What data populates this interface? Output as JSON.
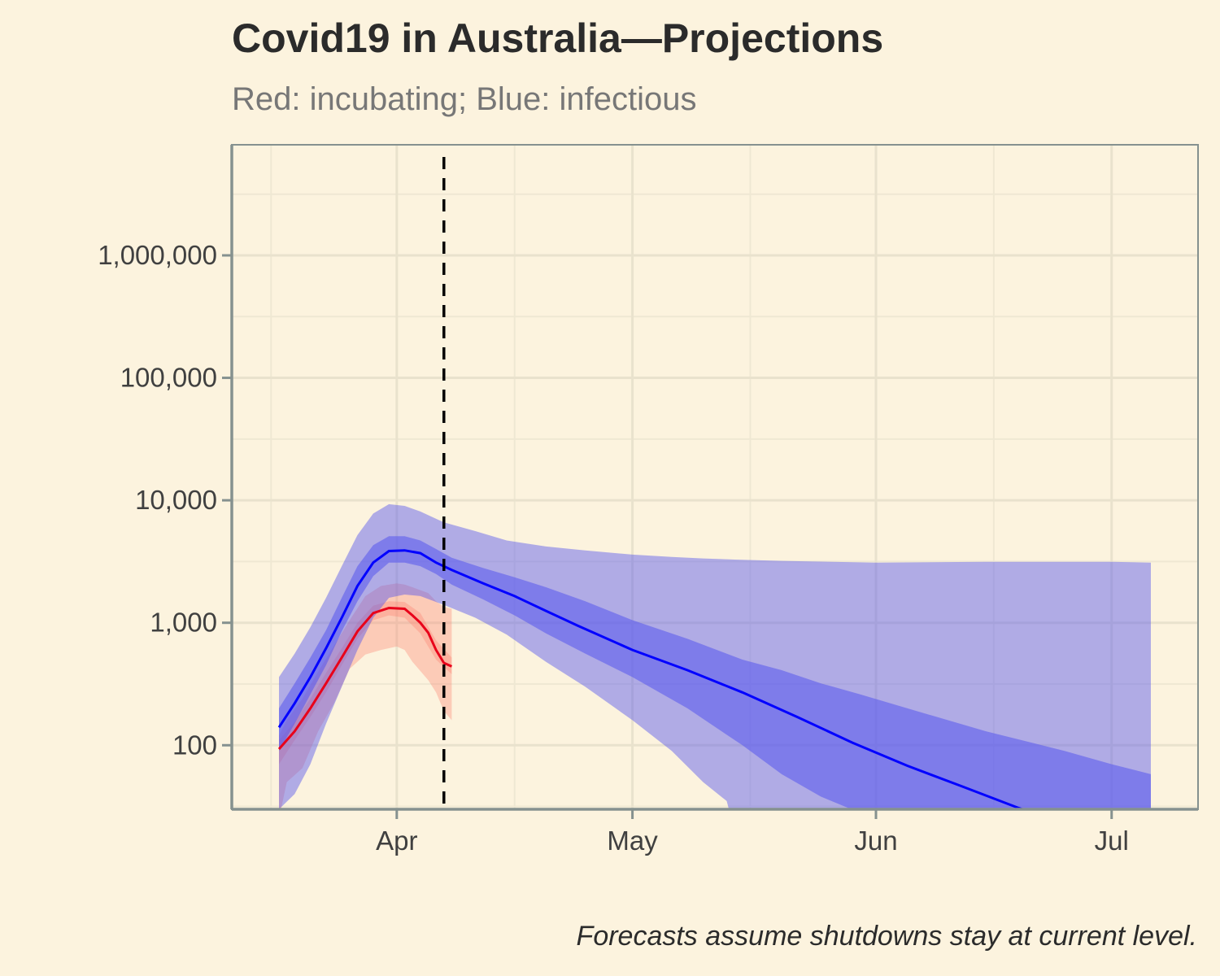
{
  "chart_data": {
    "type": "area",
    "title": "Covid19 in Australia—Projections",
    "subtitle": "Red: incubating; Blue: infectious",
    "caption": "Forecasts assume shutdowns stay at current level.",
    "xlabel": "",
    "ylabel": "",
    "y_scale": "log10",
    "ylim": [
      30,
      8000000
    ],
    "xlim": [
      "2020-03-11",
      "2020-07-12"
    ],
    "grid": true,
    "legend": "none",
    "y_ticks": [
      {
        "value": 100,
        "label": "100"
      },
      {
        "value": 1000,
        "label": "1,000"
      },
      {
        "value": 10000,
        "label": "10,000"
      },
      {
        "value": 100000,
        "label": "100,000"
      },
      {
        "value": 1000000,
        "label": "1,000,000"
      }
    ],
    "x_ticks": [
      {
        "date": "2020-04-01",
        "label": "Apr"
      },
      {
        "date": "2020-05-01",
        "label": "May"
      },
      {
        "date": "2020-06-01",
        "label": "Jun"
      },
      {
        "date": "2020-07-01",
        "label": "Jul"
      }
    ],
    "vline": {
      "date": "2020-04-07",
      "style": "dashed",
      "color": "#000000"
    },
    "colors": {
      "background": "#fcf3de",
      "grid_major": "#e9e2cd",
      "grid_minor": "#efe8d3",
      "axis": "#85918f",
      "incubating": "#e8001a",
      "incubating_band": "#fc8070",
      "infectious": "#0000ff",
      "infectious_band": "#5555ee"
    },
    "series": [
      {
        "name": "incubating",
        "color": "#e8001a",
        "line": [
          [
            "2020-03-17",
            93
          ],
          [
            "2020-03-19",
            130
          ],
          [
            "2020-03-21",
            200
          ],
          [
            "2020-03-23",
            320
          ],
          [
            "2020-03-25",
            520
          ],
          [
            "2020-03-27",
            850
          ],
          [
            "2020-03-29",
            1200
          ],
          [
            "2020-03-31",
            1320
          ],
          [
            "2020-04-02",
            1300
          ],
          [
            "2020-04-03",
            1150
          ],
          [
            "2020-04-04",
            1000
          ],
          [
            "2020-04-05",
            830
          ],
          [
            "2020-04-06",
            600
          ],
          [
            "2020-04-07",
            470
          ],
          [
            "2020-04-08",
            440
          ]
        ],
        "band_outer": [
          [
            "2020-03-17",
            25,
            120
          ],
          [
            "2020-03-18",
            50,
            160
          ],
          [
            "2020-03-20",
            65,
            240
          ],
          [
            "2020-03-22",
            130,
            400
          ],
          [
            "2020-03-24",
            220,
            650
          ],
          [
            "2020-03-26",
            420,
            1050
          ],
          [
            "2020-03-28",
            550,
            1650
          ],
          [
            "2020-03-30",
            600,
            2000
          ],
          [
            "2020-04-01",
            640,
            2100
          ],
          [
            "2020-04-02",
            600,
            2050
          ],
          [
            "2020-04-03",
            480,
            1950
          ],
          [
            "2020-04-05",
            340,
            1750
          ],
          [
            "2020-04-06",
            270,
            1500
          ],
          [
            "2020-04-07",
            190,
            1350
          ],
          [
            "2020-04-08",
            160,
            1300
          ]
        ],
        "band_inner": [
          [
            "2020-03-17",
            70,
            110
          ],
          [
            "2020-03-19",
            110,
            155
          ],
          [
            "2020-03-21",
            170,
            240
          ],
          [
            "2020-03-23",
            270,
            390
          ],
          [
            "2020-03-25",
            450,
            620
          ],
          [
            "2020-03-27",
            740,
            1000
          ],
          [
            "2020-03-29",
            1050,
            1380
          ],
          [
            "2020-03-31",
            1150,
            1500
          ],
          [
            "2020-04-02",
            1100,
            1480
          ],
          [
            "2020-04-04",
            820,
            1200
          ],
          [
            "2020-04-06",
            500,
            720
          ],
          [
            "2020-04-08",
            380,
            520
          ]
        ]
      },
      {
        "name": "infectious",
        "color": "#0000ff",
        "line": [
          [
            "2020-03-17",
            140
          ],
          [
            "2020-03-19",
            220
          ],
          [
            "2020-03-21",
            360
          ],
          [
            "2020-03-23",
            620
          ],
          [
            "2020-03-25",
            1100
          ],
          [
            "2020-03-27",
            2000
          ],
          [
            "2020-03-29",
            3100
          ],
          [
            "2020-03-31",
            3850
          ],
          [
            "2020-04-02",
            3900
          ],
          [
            "2020-04-04",
            3700
          ],
          [
            "2020-04-06",
            3100
          ],
          [
            "2020-04-08",
            2700
          ],
          [
            "2020-04-12",
            2100
          ],
          [
            "2020-04-16",
            1650
          ],
          [
            "2020-04-20",
            1250
          ],
          [
            "2020-04-24",
            950
          ],
          [
            "2020-05-01",
            600
          ],
          [
            "2020-05-08",
            410
          ],
          [
            "2020-05-15",
            270
          ],
          [
            "2020-05-22",
            170
          ],
          [
            "2020-05-29",
            105
          ],
          [
            "2020-06-05",
            68
          ],
          [
            "2020-06-12",
            46
          ],
          [
            "2020-06-19",
            31
          ],
          [
            "2020-06-21",
            28
          ]
        ],
        "band_outer": [
          [
            "2020-03-17",
            30,
            360
          ],
          [
            "2020-03-19",
            40,
            560
          ],
          [
            "2020-03-21",
            70,
            920
          ],
          [
            "2020-03-23",
            150,
            1600
          ],
          [
            "2020-03-25",
            300,
            2900
          ],
          [
            "2020-03-27",
            600,
            5200
          ],
          [
            "2020-03-29",
            1100,
            7800
          ],
          [
            "2020-03-31",
            1600,
            9300
          ],
          [
            "2020-04-02",
            1700,
            9000
          ],
          [
            "2020-04-04",
            1650,
            8100
          ],
          [
            "2020-04-07",
            1400,
            6600
          ],
          [
            "2020-04-11",
            1100,
            5600
          ],
          [
            "2020-04-15",
            800,
            4700
          ],
          [
            "2020-04-20",
            480,
            4200
          ],
          [
            "2020-04-25",
            300,
            3900
          ],
          [
            "2020-05-01",
            160,
            3600
          ],
          [
            "2020-05-06",
            90,
            3450
          ],
          [
            "2020-05-10",
            50,
            3350
          ],
          [
            "2020-05-13",
            35,
            3300
          ],
          [
            "2020-05-14",
            20,
            3280
          ],
          [
            "2020-05-20",
            20,
            3200
          ],
          [
            "2020-06-01",
            20,
            3100
          ],
          [
            "2020-06-15",
            20,
            3150
          ],
          [
            "2020-07-01",
            20,
            3150
          ],
          [
            "2020-07-06",
            20,
            3100
          ]
        ],
        "band_inner": [
          [
            "2020-03-17",
            90,
            200
          ],
          [
            "2020-03-19",
            150,
            320
          ],
          [
            "2020-03-21",
            260,
            520
          ],
          [
            "2020-03-23",
            450,
            870
          ],
          [
            "2020-03-25",
            850,
            1600
          ],
          [
            "2020-03-27",
            1500,
            2900
          ],
          [
            "2020-03-29",
            2400,
            4300
          ],
          [
            "2020-03-31",
            3100,
            5100
          ],
          [
            "2020-04-02",
            3100,
            5100
          ],
          [
            "2020-04-04",
            2900,
            4700
          ],
          [
            "2020-04-06",
            2500,
            4000
          ],
          [
            "2020-04-08",
            2050,
            3400
          ],
          [
            "2020-04-12",
            1550,
            2800
          ],
          [
            "2020-04-16",
            1150,
            2350
          ],
          [
            "2020-04-20",
            820,
            1950
          ],
          [
            "2020-04-25",
            560,
            1500
          ],
          [
            "2020-05-01",
            360,
            1050
          ],
          [
            "2020-05-08",
            200,
            740
          ],
          [
            "2020-05-15",
            100,
            500
          ],
          [
            "2020-05-20",
            58,
            410
          ],
          [
            "2020-05-25",
            38,
            320
          ],
          [
            "2020-05-30",
            28,
            260
          ],
          [
            "2020-06-05",
            20,
            200
          ],
          [
            "2020-06-15",
            20,
            130
          ],
          [
            "2020-06-25",
            20,
            90
          ],
          [
            "2020-07-01",
            20,
            70
          ],
          [
            "2020-07-06",
            20,
            58
          ]
        ]
      }
    ]
  }
}
